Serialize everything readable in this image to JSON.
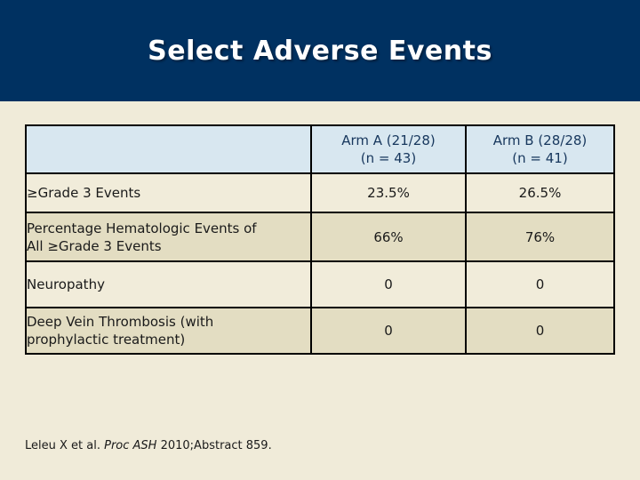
{
  "slide": {
    "title": "Select Adverse Events",
    "colors": {
      "header_bg": "#003161",
      "title_text": "#ffffff",
      "slide_bg": "#f0ebd9",
      "table_header_bg": "#d8e7f0",
      "header_text": "#17375d",
      "row_light_bg": "#f1ecda",
      "row_alt_bg": "#e3ddc2",
      "body_text": "#1a1a1a",
      "border": "#000000"
    }
  },
  "table": {
    "columns": [
      {
        "line1": "Arm A (21/28)",
        "line2": "(n = 43)"
      },
      {
        "line1": "Arm B (28/28)",
        "line2": "(n = 41)"
      }
    ],
    "rows": [
      {
        "label": "≥Grade 3 Events",
        "arm_a": "23.5%",
        "arm_b": "26.5%"
      },
      {
        "label": "Percentage Hematologic Events of All ≥Grade 3 Events",
        "arm_a": "66%",
        "arm_b": "76%"
      },
      {
        "label": "Neuropathy",
        "arm_a": "0",
        "arm_b": "0"
      },
      {
        "label": "Deep Vein Thrombosis (with prophylactic treatment)",
        "arm_a": "0",
        "arm_b": "0"
      }
    ]
  },
  "footer": {
    "citation_pre": "Leleu X et al. ",
    "citation_italic": "Proc ASH",
    "citation_post": " 2010;Abstract 859."
  }
}
